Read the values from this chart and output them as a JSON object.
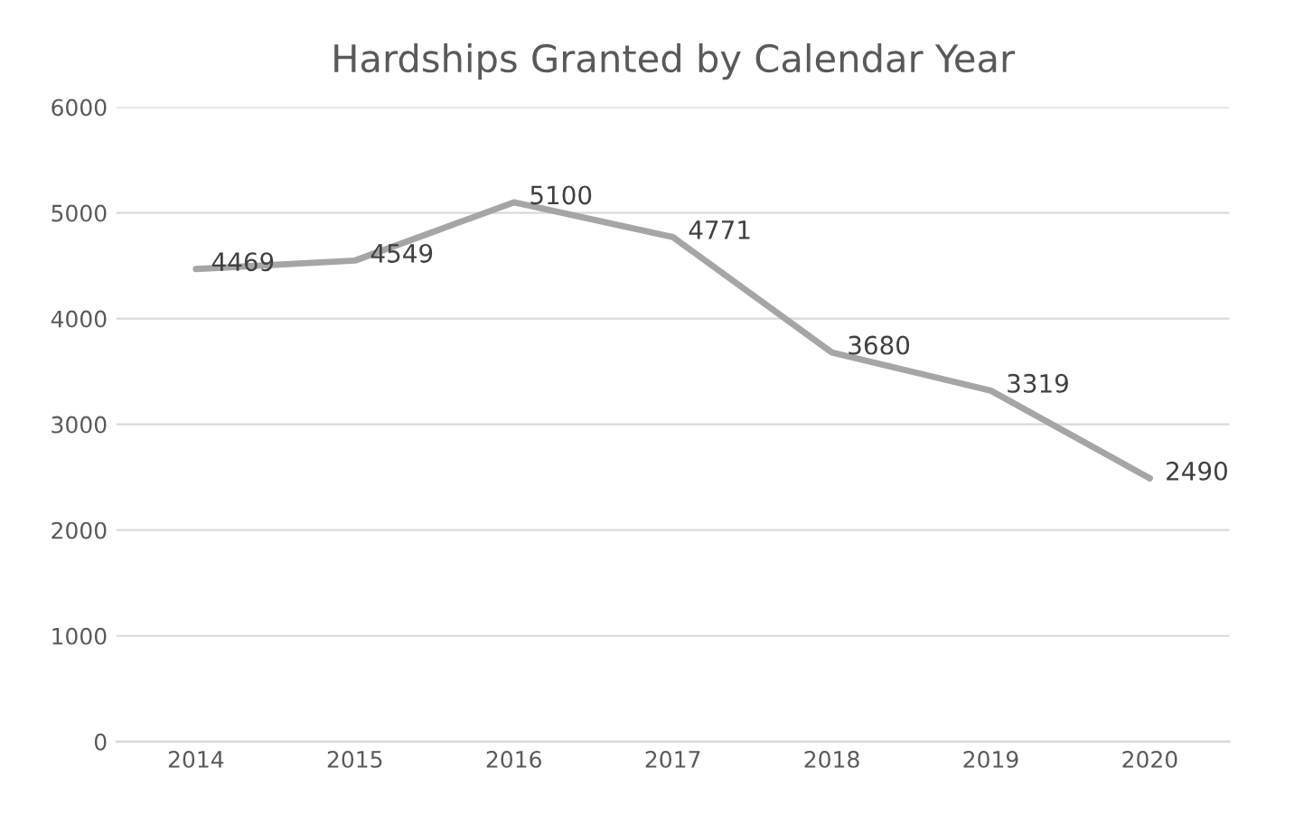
{
  "chart_data": {
    "type": "line",
    "title": "Hardships Granted by Calendar Year",
    "categories": [
      "2014",
      "2015",
      "2016",
      "2017",
      "2018",
      "2019",
      "2020"
    ],
    "values": [
      4469,
      4549,
      5100,
      4771,
      3680,
      3319,
      2490
    ],
    "color": "#a5a5a5",
    "ylim": [
      0,
      6000
    ],
    "yticks": [
      0,
      1000,
      2000,
      3000,
      4000,
      5000,
      6000
    ],
    "grid": "y",
    "data_labels": true,
    "marker": "none",
    "line_style": "solid"
  }
}
